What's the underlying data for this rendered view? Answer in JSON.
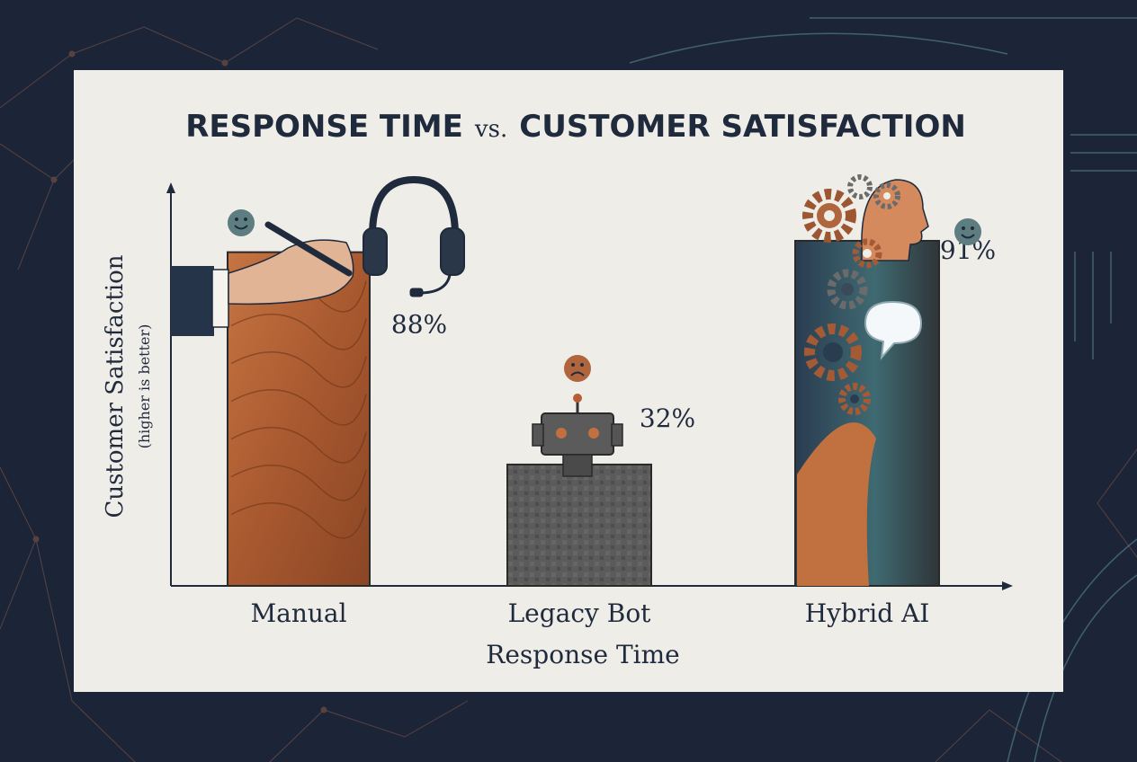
{
  "chart_data": {
    "type": "bar",
    "title": {
      "part1": "RESPONSE TIME",
      "part2": "vs.",
      "part3": "CUSTOMER SATISFACTION"
    },
    "ylabel": "Customer Satisfaction",
    "ylabel_sub": "(higher is better)",
    "xlabel": "Response Time",
    "categories": [
      "Manual",
      "Legacy Bot",
      "Hybrid AI"
    ],
    "values": [
      88,
      32,
      91
    ],
    "value_labels": [
      "88%",
      "32%",
      "91%"
    ],
    "ylim": [
      0,
      100
    ],
    "bar_colors": [
      "#b2623a",
      "#5a5a5a",
      "#33505c"
    ],
    "face_moods": [
      "happy",
      "sad",
      "happy"
    ],
    "illustrations": [
      "hand-with-pen",
      "robot",
      "gears-head"
    ],
    "headset_icon": "headset-icon",
    "grid": false,
    "legend": "none"
  },
  "palette": {
    "background": "#1c2538",
    "panel": "#efede8",
    "ink": "#1f2a3c",
    "accent_orange": "#c0713f",
    "accent_teal": "#4f7782"
  }
}
